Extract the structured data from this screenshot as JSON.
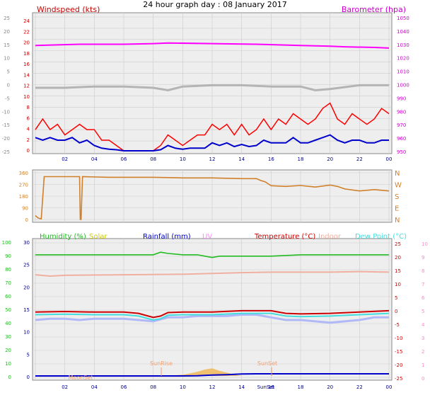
{
  "title": "24 hour graph day : 08 January 2017",
  "colors": {
    "plot_bg": "#eeeeee",
    "grid": "#cccccc",
    "wind": "#ff0000",
    "wind_avg": "#0000cc",
    "baro": "#ff00ff",
    "temp_trace_gray": "#b4b4b4",
    "direction": "#d0802a",
    "humidity": "#22bb22",
    "solar": "#cccc00",
    "rain": "#0000cc",
    "uv": "#ff88ff",
    "temperature": "#cc0000",
    "indoor": "#f0b0a0",
    "dewpoint": "#44dddd",
    "temp_min_trace": "#b0b8f8",
    "solar_fill": "#f0c070"
  },
  "chart_data": [
    {
      "type": "line",
      "name": "wind_baro",
      "legend_left": "Windspeed (kts)",
      "legend_right": "Barometer (hpa)",
      "x_ticks": [
        "02",
        "04",
        "06",
        "08",
        "10",
        "12",
        "14",
        "16",
        "18",
        "20",
        "22",
        "00"
      ],
      "y_left_outer_ticks": [
        "25",
        "20",
        "15",
        "10",
        "5",
        "0",
        "-5",
        "-10",
        "-15",
        "-20",
        "-25"
      ],
      "y_left_ticks": [
        "24",
        "22",
        "20",
        "18",
        "16",
        "14",
        "12",
        "10",
        "8",
        "6",
        "4",
        "2",
        "0"
      ],
      "y_right_ticks": [
        "1050",
        "1040",
        "1030",
        "1020",
        "1010",
        "1000",
        "990",
        "980",
        "970",
        "960",
        "950"
      ],
      "y_left_range": [
        0,
        25
      ],
      "y_right_range": [
        945,
        1050
      ],
      "barometer": {
        "hours": [
          0,
          3,
          6,
          8,
          9,
          12,
          15,
          18,
          20,
          21,
          23,
          24
        ],
        "values": [
          1028.5,
          1029.5,
          1029.5,
          1030,
          1030.5,
          1030,
          1029.5,
          1028.5,
          1028,
          1027.5,
          1027,
          1026.5
        ]
      },
      "wind_gust": {
        "hours": [
          0,
          0.5,
          1,
          1.5,
          2,
          2.5,
          3,
          3.5,
          4,
          4.5,
          5,
          5.5,
          6,
          6.5,
          7,
          7.5,
          8,
          8.5,
          9,
          9.5,
          10,
          10.5,
          11,
          11.5,
          12,
          12.5,
          13,
          13.5,
          14,
          14.5,
          15,
          15.5,
          16,
          16.5,
          17,
          17.5,
          18,
          18.5,
          19,
          19.5,
          20,
          20.5,
          21,
          21.5,
          22,
          22.5,
          23,
          23.5,
          24
        ],
        "values": [
          4,
          6,
          4,
          5,
          3,
          4,
          5,
          4,
          4,
          2,
          2,
          1,
          0,
          0,
          0,
          0,
          0,
          1,
          3,
          2,
          1,
          2,
          3,
          3,
          5,
          4,
          5,
          3,
          5,
          3,
          4,
          6,
          4,
          6,
          5,
          7,
          6,
          5,
          6,
          8,
          9,
          6,
          5,
          7,
          6,
          5,
          6,
          8,
          7
        ]
      },
      "wind_avg": {
        "hours": [
          0,
          0.5,
          1,
          1.5,
          2,
          2.5,
          3,
          3.5,
          4,
          4.5,
          5,
          5.5,
          6,
          6.5,
          7,
          7.5,
          8,
          8.5,
          9,
          9.5,
          10,
          10.5,
          11,
          11.5,
          12,
          12.5,
          13,
          13.5,
          14,
          14.5,
          15,
          15.5,
          16,
          16.5,
          17,
          17.5,
          18,
          18.5,
          19,
          19.5,
          20,
          20.5,
          21,
          21.5,
          22,
          22.5,
          23,
          23.5,
          24
        ],
        "values": [
          2.5,
          2,
          2.5,
          2,
          2,
          2.5,
          1.5,
          2,
          1,
          0.5,
          0.3,
          0.2,
          0,
          0,
          0,
          0,
          0,
          0.2,
          1,
          0.5,
          0.3,
          0.5,
          0.5,
          0.5,
          1.5,
          1,
          1.5,
          0.8,
          1.2,
          0.8,
          1,
          2,
          1.5,
          1.5,
          1.5,
          2.5,
          1.5,
          1.5,
          2,
          2.5,
          3,
          2,
          1.5,
          2,
          2,
          1.5,
          1.5,
          2,
          2
        ]
      },
      "gray_trace": {
        "hours": [
          0,
          2,
          4,
          6,
          8,
          9,
          10,
          12,
          14,
          16,
          18,
          19,
          20,
          22,
          24
        ],
        "values": [
          995,
          995,
          996,
          996,
          995,
          993,
          996,
          997,
          997,
          996,
          996,
          993,
          994,
          997,
          997
        ]
      }
    },
    {
      "type": "line",
      "name": "wind_direction",
      "y_left_ticks": [
        "360",
        "270",
        "180",
        "90",
        "0"
      ],
      "y_right_ticks": [
        "N",
        "W",
        "S",
        "E",
        "N"
      ],
      "y_range": [
        0,
        360
      ],
      "hours": [
        0,
        0.2,
        0.4,
        0.6,
        3,
        3.05,
        3.1,
        3.2,
        5,
        8,
        10,
        12,
        14,
        15,
        15.3,
        15.6,
        16,
        17,
        18,
        19,
        20,
        20.5,
        21,
        22,
        23,
        24
      ],
      "values": [
        30,
        10,
        5,
        330,
        330,
        0,
        0,
        330,
        325,
        325,
        320,
        320,
        315,
        315,
        300,
        290,
        260,
        255,
        262,
        250,
        265,
        255,
        235,
        220,
        230,
        220
      ]
    },
    {
      "type": "line",
      "name": "temp_humidity",
      "legends": [
        "Humidity (%)",
        "Solar",
        "Rainfall (mm)",
        "UV",
        "Temperature (°C)",
        "Indoor",
        "Dew Point (°C)"
      ],
      "x_ticks": [
        "02",
        "04",
        "06",
        "08",
        "10",
        "12",
        "14",
        "16",
        "18",
        "20",
        "22",
        "00"
      ],
      "y_outer_left_ticks": [
        "100",
        "90",
        "80",
        "70",
        "60",
        "50",
        "40",
        "30",
        "20",
        "10",
        "0"
      ],
      "y_left_ticks": [
        "30",
        "25",
        "20",
        "15",
        "10",
        "5",
        "0"
      ],
      "y_right_ticks": [
        "25",
        "20",
        "15",
        "10",
        "5",
        "0",
        "-5",
        "-10",
        "-15",
        "-20",
        "-25"
      ],
      "y_right_outer_ticks": [
        "10",
        "9",
        "8",
        "7",
        "6",
        "5",
        "4",
        "3",
        "2",
        "1",
        "0"
      ],
      "y_right_range": [
        -25,
        25
      ],
      "annotations": [
        "SunRise",
        "SunSet",
        "MoonSet",
        "SunSet"
      ],
      "humidity": {
        "hours": [
          0,
          2,
          4,
          6,
          7,
          8,
          8.5,
          9,
          10,
          11,
          11.5,
          12,
          12.5,
          14,
          16,
          18,
          20,
          22,
          24
        ],
        "values": [
          91,
          91,
          91,
          91,
          91,
          91,
          93,
          92,
          91,
          91,
          90,
          89,
          90,
          90,
          90,
          91,
          91,
          91,
          91
        ]
      },
      "temperature": {
        "hours": [
          0,
          2,
          4,
          6,
          7,
          8,
          8.5,
          9,
          10,
          12,
          14,
          16,
          17,
          18,
          20,
          22,
          24
        ],
        "values": [
          -1,
          -0.8,
          -1,
          -1,
          -1.5,
          -3,
          -2.5,
          -1.2,
          -1,
          -1,
          -0.5,
          -0.5,
          -1.5,
          -1.7,
          -1.5,
          -1,
          -0.5
        ]
      },
      "dewpoint": {
        "hours": [
          0,
          2,
          4,
          6,
          7,
          8,
          8.5,
          9,
          10,
          12,
          14,
          16,
          17,
          18,
          20,
          22,
          24
        ],
        "values": [
          -2,
          -1.8,
          -2,
          -2,
          -2.5,
          -4,
          -3.5,
          -2.2,
          -2,
          -2,
          -1.5,
          -1.5,
          -2.5,
          -2.7,
          -2.5,
          -2,
          -1.5
        ]
      },
      "temp_min": {
        "hours": [
          0,
          1,
          2,
          3,
          4,
          5,
          6,
          7,
          8,
          9,
          10,
          11,
          12,
          13,
          14,
          15,
          16,
          17,
          18,
          19,
          20,
          21,
          22,
          23,
          24
        ],
        "values": [
          -4,
          -3.5,
          -3.5,
          -4,
          -3.5,
          -3.5,
          -3.5,
          -4,
          -4.5,
          -3,
          -3,
          -2.5,
          -2.5,
          -2.5,
          -2,
          -2,
          -3,
          -4,
          -4,
          -4.5,
          -5,
          -4.5,
          -4,
          -3,
          -3
        ]
      },
      "indoor": {
        "hours": [
          0,
          1,
          2,
          6,
          10,
          12,
          14,
          16,
          18,
          20,
          22,
          24
        ],
        "values": [
          13,
          12.5,
          12.8,
          13,
          13.2,
          13.5,
          13.8,
          14,
          14,
          14,
          14.2,
          14
        ]
      },
      "rain": {
        "hours": [
          0,
          10,
          11,
          12,
          13,
          14,
          15,
          24
        ],
        "values": [
          0,
          0,
          0.1,
          0.4,
          0.6,
          0.9,
          1,
          1
        ]
      },
      "solar": {
        "hours": [
          8.8,
          10,
          10.5,
          11,
          11.5,
          12,
          12.5,
          13,
          13.5,
          14
        ],
        "values": [
          0,
          0.3,
          0.6,
          1,
          1.5,
          1.8,
          1.2,
          0.8,
          0.3,
          0
        ]
      }
    }
  ]
}
